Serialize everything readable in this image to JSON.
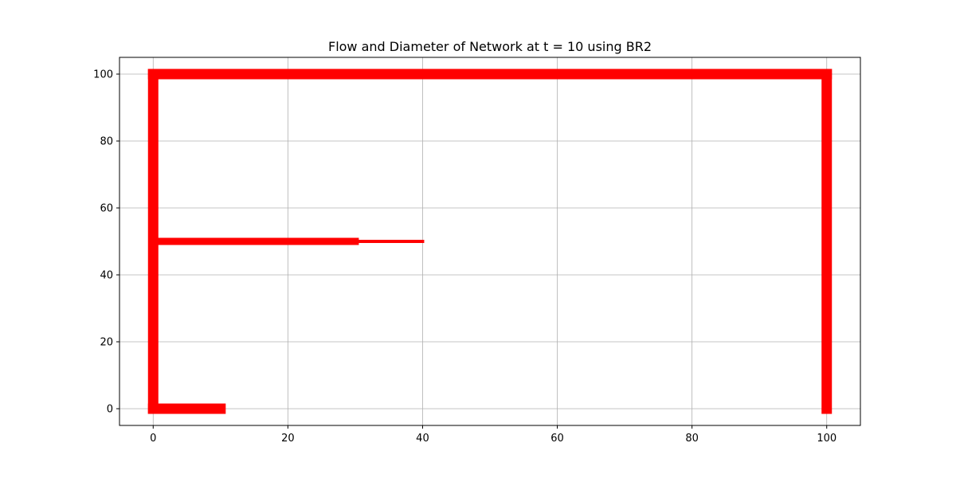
{
  "chart_data": {
    "type": "line",
    "title": "Flow and Diameter of Network at t = 10 using BR2",
    "xlabel": "",
    "ylabel": "",
    "xlim": [
      -5,
      105
    ],
    "ylim": [
      -5,
      105
    ],
    "xticks": [
      0,
      20,
      40,
      60,
      80,
      100
    ],
    "yticks": [
      0,
      20,
      40,
      60,
      80,
      100
    ],
    "grid": true,
    "line_color": "#ff0000",
    "grid_color": "#b0b0b0",
    "segments": [
      {
        "x": [
          0,
          10
        ],
        "y": [
          0,
          0
        ],
        "width": "thick"
      },
      {
        "x": [
          0,
          0
        ],
        "y": [
          0,
          100
        ],
        "width": "thick"
      },
      {
        "x": [
          0,
          100
        ],
        "y": [
          100,
          100
        ],
        "width": "thick"
      },
      {
        "x": [
          100,
          100
        ],
        "y": [
          100,
          0
        ],
        "width": "thick"
      },
      {
        "x": [
          0,
          20
        ],
        "y": [
          50,
          50
        ],
        "width": "medium"
      },
      {
        "x": [
          20,
          30
        ],
        "y": [
          50,
          50
        ],
        "width": "medium"
      },
      {
        "x": [
          30,
          40
        ],
        "y": [
          50,
          50
        ],
        "width": "thin"
      }
    ]
  }
}
